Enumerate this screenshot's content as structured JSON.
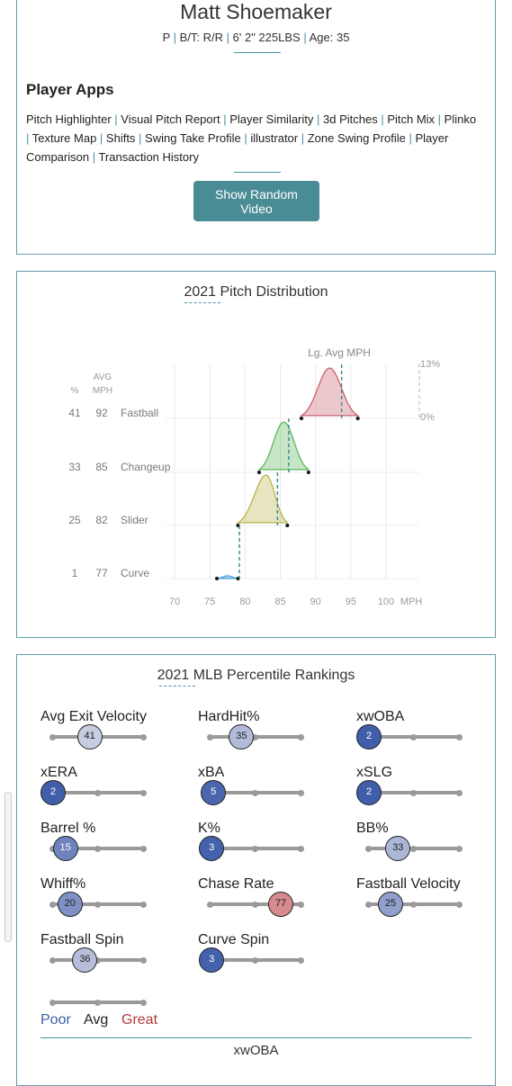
{
  "player": {
    "name": "Matt Shoemaker",
    "position": "P",
    "bt": "B/T: R/R",
    "size": "6' 2\" 225LBS",
    "age": "Age: 35"
  },
  "apps": {
    "title": "Player Apps",
    "links": [
      "Pitch Highlighter",
      "Visual Pitch Report",
      "Player Similarity",
      "3d Pitches",
      "Pitch Mix",
      "Plinko",
      "Texture Map",
      "Shifts",
      "Swing Take Profile",
      "illustrator",
      "Zone Swing Profile",
      "Player Comparison",
      "Transaction History"
    ],
    "button": "Show Random Video"
  },
  "distribution": {
    "title": "2021 Pitch Distribution",
    "lg_label": "Lg. Avg MPH",
    "pct_header": "%",
    "avg_header": [
      "AVG",
      "MPH"
    ],
    "scale_top": "13%",
    "scale_bottom": "0%",
    "colors": {
      "Fastball": "#c9626e",
      "Changeup": "#5cb85c",
      "Slider": "#b7b54a",
      "Curve": "#4aa0d8"
    }
  },
  "chart_data": {
    "type": "area",
    "title": "2021 Pitch Distribution",
    "xlabel": "MPH",
    "xlim": [
      70,
      100
    ],
    "xticks": [
      70,
      75,
      80,
      85,
      90,
      95,
      100
    ],
    "series": [
      {
        "name": "Fastball",
        "pct": 41,
        "avg_mph": 92,
        "range": [
          88,
          96
        ],
        "peak_mph": 92,
        "lg_avg_mph": 93.7
      },
      {
        "name": "Changeup",
        "pct": 33,
        "avg_mph": 85,
        "range": [
          82,
          89
        ],
        "peak_mph": 85.5,
        "lg_avg_mph": 86.2
      },
      {
        "name": "Slider",
        "pct": 25,
        "avg_mph": 82,
        "range": [
          79,
          86
        ],
        "peak_mph": 83,
        "lg_avg_mph": 84.6
      },
      {
        "name": "Curve",
        "pct": 1,
        "avg_mph": 77,
        "range": [
          76,
          79
        ],
        "peak_mph": 77.5,
        "lg_avg_mph": 79.2
      }
    ]
  },
  "percentiles": {
    "title": "2021 MLB Percentile Rankings",
    "items": [
      {
        "label": "Avg Exit Velocity",
        "value": 41
      },
      {
        "label": "HardHit%",
        "value": 35
      },
      {
        "label": "xwOBA",
        "value": 2
      },
      {
        "label": "xERA",
        "value": 2
      },
      {
        "label": "xBA",
        "value": 5
      },
      {
        "label": "xSLG",
        "value": 2
      },
      {
        "label": "Barrel %",
        "value": 15
      },
      {
        "label": "K%",
        "value": 3
      },
      {
        "label": "BB%",
        "value": 33
      },
      {
        "label": "Whiff%",
        "value": 20
      },
      {
        "label": "Chase Rate",
        "value": 77
      },
      {
        "label": "Fastball Velocity",
        "value": 25
      },
      {
        "label": "Fastball Spin",
        "value": 36
      },
      {
        "label": "Curve Spin",
        "value": 3
      }
    ],
    "legend": {
      "poor": "Poor",
      "avg": "Avg",
      "great": "Great"
    },
    "legend_colors": {
      "poor": "#3a5fa6",
      "avg": "#222222",
      "great": "#b03a3a"
    },
    "selected_metric": "xwOBA"
  }
}
